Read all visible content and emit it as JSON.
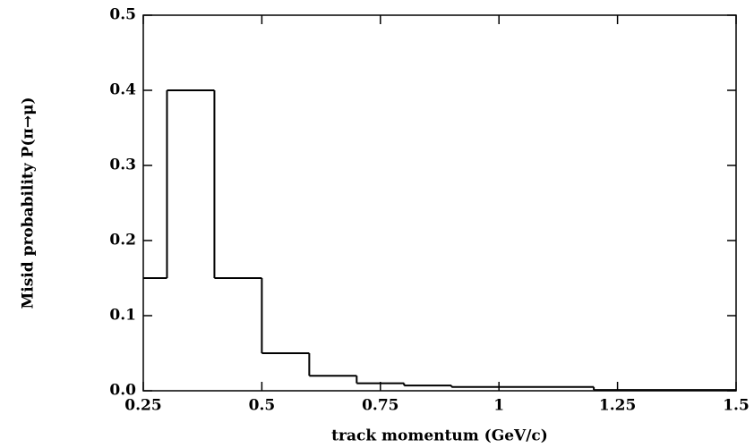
{
  "chart_data": {
    "type": "histogram",
    "x_label": "track momentum (GeV/c)",
    "y_label": "Misid probability P(π→μ)",
    "bins": [
      0.25,
      0.3,
      0.4,
      0.5,
      0.6,
      0.7,
      0.8,
      0.9,
      1.2,
      1.5
    ],
    "values": [
      0.15,
      0.4,
      0.15,
      0.05,
      0.02,
      0.01,
      0.007,
      0.005,
      0.001
    ],
    "color": "#000000",
    "xlim": [
      0.25,
      1.5
    ],
    "xticks": [
      0.25,
      0.5,
      0.75,
      1,
      1.25,
      1.5
    ],
    "ylim": [
      0,
      0.5
    ],
    "yticks": [
      {
        "value": 0,
        "label": "0.0"
      },
      0.1,
      0.2,
      0.3,
      0.4,
      0.5
    ]
  }
}
